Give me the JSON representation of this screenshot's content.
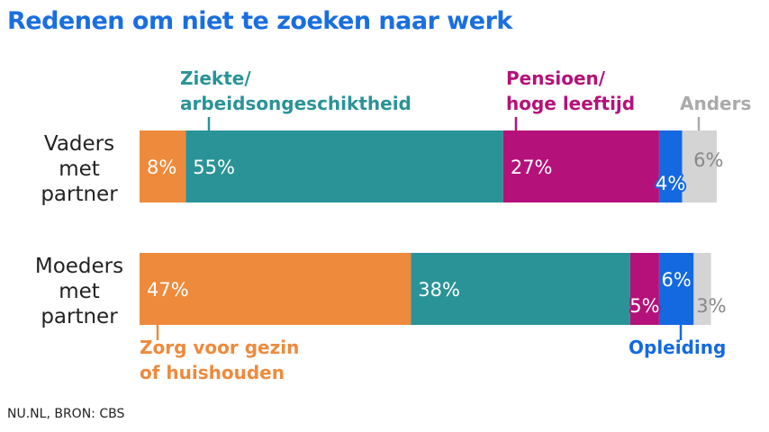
{
  "title": "Redenen om niet te zoeken naar werk",
  "source": "NU.NL, BRON: CBS",
  "chart_data": {
    "type": "bar",
    "orientation": "horizontal",
    "stacked": true,
    "categories": [
      "Vaders met partner",
      "Moeders met partner"
    ],
    "series": [
      {
        "name": "Zorg voor gezin of huishouden",
        "color": "#ee8a3c",
        "values": [
          8,
          47
        ]
      },
      {
        "name": "Ziekte/ arbeidsongeschiktheid",
        "color": "#2a9397",
        "values": [
          55,
          38
        ]
      },
      {
        "name": "Pensioen/ hoge leeftijd",
        "color": "#b5117a",
        "values": [
          27,
          5
        ]
      },
      {
        "name": "Opleiding",
        "color": "#1469e0",
        "values": [
          4,
          6
        ]
      },
      {
        "name": "Anders",
        "color": "#d4d4d4",
        "values": [
          6,
          3
        ]
      }
    ],
    "data_labels": [
      [
        "8%",
        "55%",
        "27%",
        "4%",
        "6%"
      ],
      [
        "47%",
        "38%",
        "5%",
        "6%",
        "3%"
      ]
    ],
    "legend": "inline labels"
  }
}
